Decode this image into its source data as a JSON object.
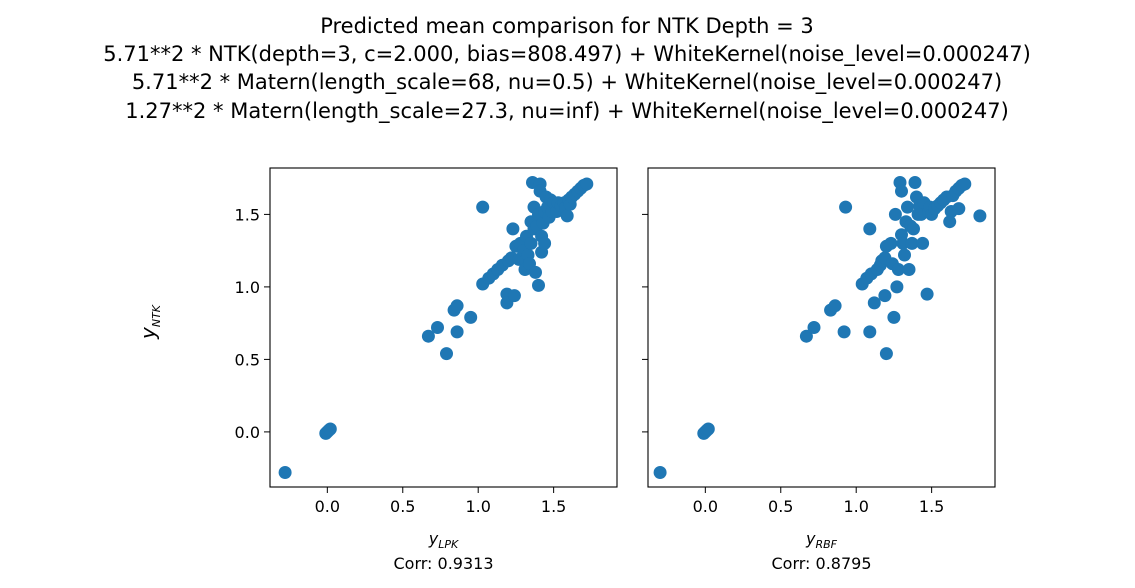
{
  "figure": {
    "title_lines": [
      "Predicted mean comparison for NTK Depth = 3",
      "5.71**2 * NTK(depth=3, c=2.000, bias=808.497) + WhiteKernel(noise_level=0.000247)",
      "5.71**2 * Matern(length_scale=68, nu=0.5) + WhiteKernel(noise_level=0.000247)",
      "1.27**2 * Matern(length_scale=27.3, nu=inf) + WhiteKernel(noise_level=0.000247)"
    ],
    "ylabel_main": "y",
    "ylabel_sub": "NTK"
  },
  "chart_data": [
    {
      "type": "scatter",
      "xlabel_main": "y",
      "xlabel_sub": "LPK",
      "corr_text": "Corr: 0.9313",
      "xlim": [
        -0.38,
        1.92
      ],
      "ylim": [
        -0.38,
        1.82
      ],
      "xticks": [
        0.0,
        0.5,
        1.0,
        1.5
      ],
      "xtick_labels": [
        "0.0",
        "0.5",
        "1.0",
        "1.5"
      ],
      "yticks": [
        0.0,
        0.5,
        1.0,
        1.5
      ],
      "ytick_labels": [
        "0.0",
        "0.5",
        "1.0",
        "1.5"
      ],
      "color": "#1f77b4",
      "points": [
        [
          -0.28,
          -0.28
        ],
        [
          -0.01,
          -0.01
        ],
        [
          0.0,
          0.0
        ],
        [
          0.01,
          0.01
        ],
        [
          0.02,
          0.02
        ],
        [
          0.67,
          0.66
        ],
        [
          0.73,
          0.72
        ],
        [
          0.79,
          0.54
        ],
        [
          0.84,
          0.84
        ],
        [
          0.86,
          0.87
        ],
        [
          0.86,
          0.69
        ],
        [
          0.95,
          0.79
        ],
        [
          1.03,
          1.02
        ],
        [
          1.03,
          1.55
        ],
        [
          1.07,
          1.06
        ],
        [
          1.1,
          1.09
        ],
        [
          1.13,
          1.12
        ],
        [
          1.16,
          1.15
        ],
        [
          1.19,
          0.95
        ],
        [
          1.19,
          0.89
        ],
        [
          1.2,
          1.18
        ],
        [
          1.22,
          1.2
        ],
        [
          1.23,
          1.4
        ],
        [
          1.24,
          0.94
        ],
        [
          1.25,
          1.28
        ],
        [
          1.27,
          1.19
        ],
        [
          1.28,
          1.3
        ],
        [
          1.3,
          1.25
        ],
        [
          1.31,
          1.12
        ],
        [
          1.32,
          1.35
        ],
        [
          1.33,
          1.22
        ],
        [
          1.34,
          1.16
        ],
        [
          1.35,
          1.45
        ],
        [
          1.35,
          1.3
        ],
        [
          1.36,
          1.72
        ],
        [
          1.37,
          1.55
        ],
        [
          1.37,
          1.4
        ],
        [
          1.38,
          1.1
        ],
        [
          1.39,
          1.42
        ],
        [
          1.4,
          1.5
        ],
        [
          1.4,
          1.01
        ],
        [
          1.41,
          1.71
        ],
        [
          1.41,
          1.66
        ],
        [
          1.42,
          1.35
        ],
        [
          1.42,
          1.24
        ],
        [
          1.43,
          1.44
        ],
        [
          1.44,
          1.52
        ],
        [
          1.44,
          1.3
        ],
        [
          1.45,
          1.62
        ],
        [
          1.46,
          1.55
        ],
        [
          1.47,
          1.48
        ],
        [
          1.48,
          1.6
        ],
        [
          1.49,
          1.52
        ],
        [
          1.5,
          1.58
        ],
        [
          1.52,
          1.52
        ],
        [
          1.53,
          1.58
        ],
        [
          1.55,
          1.56
        ],
        [
          1.57,
          1.58
        ],
        [
          1.58,
          1.55
        ],
        [
          1.59,
          1.49
        ],
        [
          1.6,
          1.6
        ],
        [
          1.61,
          1.57
        ],
        [
          1.62,
          1.62
        ],
        [
          1.64,
          1.64
        ],
        [
          1.66,
          1.66
        ],
        [
          1.68,
          1.68
        ],
        [
          1.7,
          1.7
        ],
        [
          1.72,
          1.71
        ]
      ]
    },
    {
      "type": "scatter",
      "xlabel_main": "y",
      "xlabel_sub": "RBF",
      "corr_text": "Corr: 0.8795",
      "xlim": [
        -0.38,
        1.92
      ],
      "ylim": [
        -0.38,
        1.82
      ],
      "xticks": [
        0.0,
        0.5,
        1.0,
        1.5
      ],
      "xtick_labels": [
        "0.0",
        "0.5",
        "1.0",
        "1.5"
      ],
      "yticks": [
        0.0,
        0.5,
        1.0,
        1.5
      ],
      "color": "#1f77b4",
      "points": [
        [
          -0.3,
          -0.28
        ],
        [
          -0.01,
          -0.01
        ],
        [
          0.0,
          0.0
        ],
        [
          0.01,
          0.01
        ],
        [
          0.02,
          0.02
        ],
        [
          0.67,
          0.66
        ],
        [
          0.72,
          0.72
        ],
        [
          0.83,
          0.84
        ],
        [
          0.86,
          0.87
        ],
        [
          0.92,
          0.69
        ],
        [
          1.2,
          0.54
        ],
        [
          1.25,
          0.79
        ],
        [
          1.09,
          0.69
        ],
        [
          1.12,
          0.89
        ],
        [
          0.93,
          1.55
        ],
        [
          1.04,
          1.02
        ],
        [
          1.07,
          1.06
        ],
        [
          1.09,
          1.4
        ],
        [
          1.1,
          1.09
        ],
        [
          1.14,
          1.12
        ],
        [
          1.16,
          1.15
        ],
        [
          1.17,
          1.18
        ],
        [
          1.19,
          0.94
        ],
        [
          1.19,
          1.2
        ],
        [
          1.2,
          1.28
        ],
        [
          1.23,
          1.3
        ],
        [
          1.24,
          1.16
        ],
        [
          1.26,
          1.5
        ],
        [
          1.27,
          1.0
        ],
        [
          1.28,
          1.12
        ],
        [
          1.29,
          1.72
        ],
        [
          1.3,
          1.66
        ],
        [
          1.3,
          1.36
        ],
        [
          1.31,
          1.3
        ],
        [
          1.32,
          1.22
        ],
        [
          1.33,
          1.45
        ],
        [
          1.34,
          1.55
        ],
        [
          1.35,
          1.12
        ],
        [
          1.36,
          1.42
        ],
        [
          1.37,
          1.3
        ],
        [
          1.38,
          1.4
        ],
        [
          1.39,
          1.72
        ],
        [
          1.4,
          1.62
        ],
        [
          1.41,
          1.5
        ],
        [
          1.42,
          1.56
        ],
        [
          1.43,
          1.5
        ],
        [
          1.44,
          1.3
        ],
        [
          1.45,
          1.58
        ],
        [
          1.47,
          0.95
        ],
        [
          1.48,
          1.52
        ],
        [
          1.49,
          1.55
        ],
        [
          1.5,
          1.5
        ],
        [
          1.52,
          1.54
        ],
        [
          1.54,
          1.56
        ],
        [
          1.56,
          1.58
        ],
        [
          1.58,
          1.6
        ],
        [
          1.6,
          1.62
        ],
        [
          1.62,
          1.45
        ],
        [
          1.63,
          1.52
        ],
        [
          1.64,
          1.63
        ],
        [
          1.66,
          1.66
        ],
        [
          1.68,
          1.54
        ],
        [
          1.68,
          1.68
        ],
        [
          1.7,
          1.7
        ],
        [
          1.72,
          1.71
        ],
        [
          1.82,
          1.49
        ]
      ]
    }
  ]
}
